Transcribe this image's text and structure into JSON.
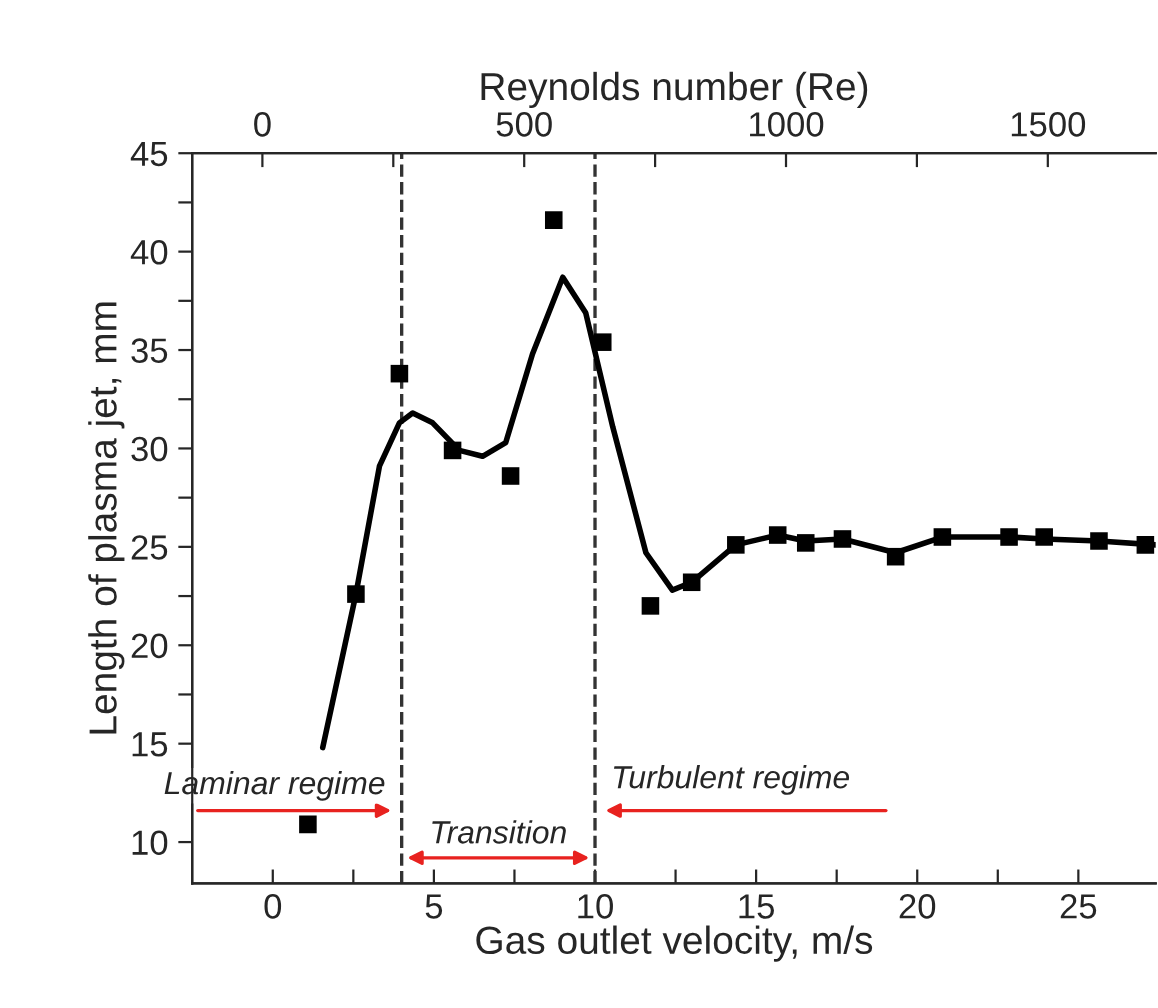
{
  "chart_data": {
    "type": "scatter",
    "xlabel": "Gas outlet velocity, m/s",
    "ylabel": "Length of plasma jet, mm",
    "x2label": "Reynolds number (Re)",
    "x": [
      1.09,
      2.58,
      3.93,
      5.58,
      7.38,
      8.72,
      10.24,
      11.72,
      13.0,
      14.37,
      15.67,
      16.54,
      17.68,
      19.33,
      20.78,
      22.85,
      23.94,
      25.64,
      27.08
    ],
    "series": [
      {
        "color": "#000000",
        "marker": "square",
        "values": [
          10.9,
          22.6,
          33.8,
          29.9,
          28.6,
          41.6,
          35.4,
          22.0,
          23.2,
          25.1,
          25.6,
          25.2,
          25.4,
          24.5,
          25.5,
          25.5,
          25.5,
          25.3,
          25.1
        ]
      },
      {
        "type": "line",
        "color": "#000000",
        "line_style": "solid",
        "x": [
          1.55,
          2.58,
          3.31,
          3.93,
          4.34,
          4.96,
          5.79,
          6.51,
          7.23,
          8.06,
          9.0,
          9.71,
          10.55,
          11.58,
          12.4,
          13.0,
          14.37,
          15.67,
          16.54,
          17.68,
          19.33,
          20.78,
          22.85,
          23.94,
          25.64,
          27.4
        ],
        "values": [
          14.8,
          22.6,
          29.1,
          31.3,
          31.8,
          31.3,
          29.9,
          29.6,
          30.3,
          34.8,
          38.7,
          36.9,
          31.1,
          24.7,
          22.8,
          23.2,
          25.1,
          25.6,
          25.3,
          25.4,
          24.7,
          25.5,
          25.5,
          25.4,
          25.3,
          25.1
        ]
      }
    ],
    "xlim": [
      -2.5,
      27.4
    ],
    "xticks": [
      0,
      {
        "value": 2.5,
        "label": null
      },
      5,
      {
        "value": 7.5,
        "label": null
      },
      10,
      {
        "value": 12.5,
        "label": null
      },
      15,
      {
        "value": 17.5,
        "label": null
      },
      20,
      {
        "value": 22.5,
        "label": null
      },
      25
    ],
    "ylim": [
      7.9,
      45
    ],
    "yticks": [
      10,
      {
        "value": 12.5,
        "label": null
      },
      15,
      {
        "value": 17.5,
        "label": null
      },
      20,
      {
        "value": 22.5,
        "label": null
      },
      25,
      {
        "value": 27.5,
        "label": null
      },
      30,
      {
        "value": 32.5,
        "label": null
      },
      35,
      {
        "value": 37.5,
        "label": null
      },
      40,
      {
        "value": 42.5,
        "label": null
      },
      45
    ],
    "x2lim": [
      -134,
      1706
    ],
    "x2ticks": [
      0,
      {
        "value": 250,
        "label": null
      },
      500,
      {
        "value": 750,
        "label": null
      },
      1000,
      {
        "value": 1250,
        "label": null
      },
      1500
    ],
    "ref_lines": [
      {
        "axis": "x",
        "value": 4,
        "color": "#333333",
        "line_style": "dashed"
      },
      {
        "axis": "x",
        "value": 10,
        "color": "#333333",
        "line_style": "dashed"
      }
    ],
    "annotations": [
      "Laminar regime",
      "Transition",
      "Turbulent regime"
    ],
    "grid": false,
    "legend": false
  }
}
